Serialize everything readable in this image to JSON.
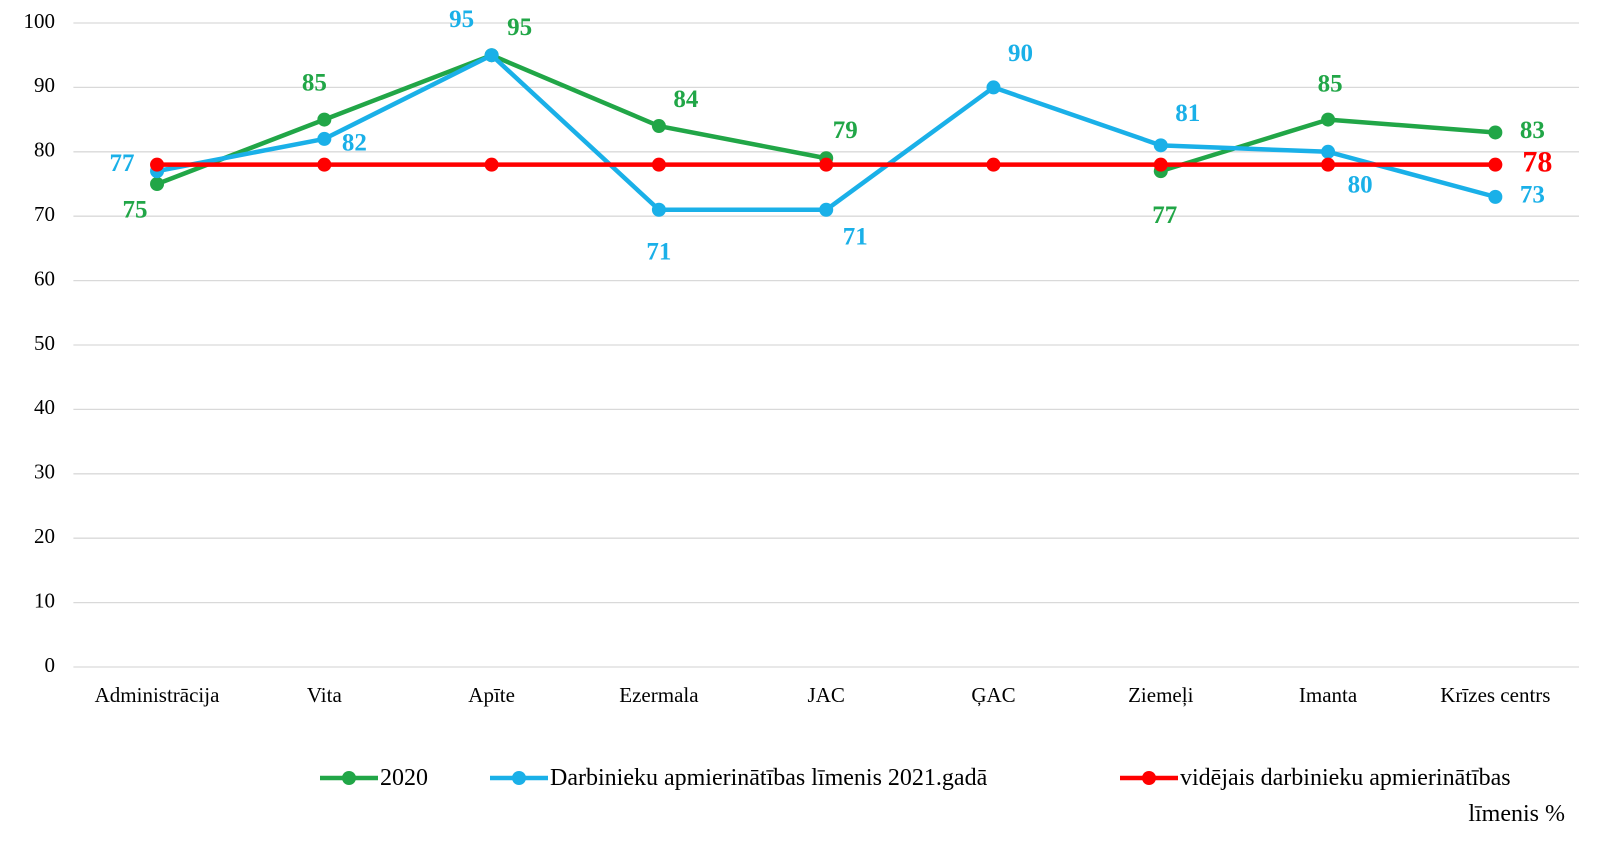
{
  "chart_data": {
    "type": "line",
    "categories": [
      "Administrācija",
      "Vita",
      "Apīte",
      "Ezermala",
      "JAC",
      "ĢAC",
      "Ziemeļi",
      "Imanta",
      "Krīzes centrs"
    ],
    "series": [
      {
        "name": "2020",
        "color": "#21a647",
        "values": [
          75,
          85,
          95,
          84,
          79,
          null,
          77,
          85,
          83
        ],
        "data_labels": "all"
      },
      {
        "name": "Darbinieku apmierinātības līmenis 2021.gadā",
        "color": "#1ab0e8",
        "values": [
          77,
          82,
          95,
          71,
          71,
          90,
          81,
          80,
          73
        ],
        "data_labels": "all"
      },
      {
        "name": "vidējais darbinieku apmierinātības līmenis %",
        "color": "#ff0000",
        "values": [
          78,
          78,
          78,
          78,
          78,
          78,
          78,
          78,
          78
        ],
        "data_labels": "last"
      }
    ],
    "ylim": [
      0,
      100
    ],
    "yticks": [
      0,
      10,
      20,
      30,
      40,
      50,
      60,
      70,
      80,
      90,
      100
    ],
    "grid": true,
    "legend": "bottom"
  }
}
